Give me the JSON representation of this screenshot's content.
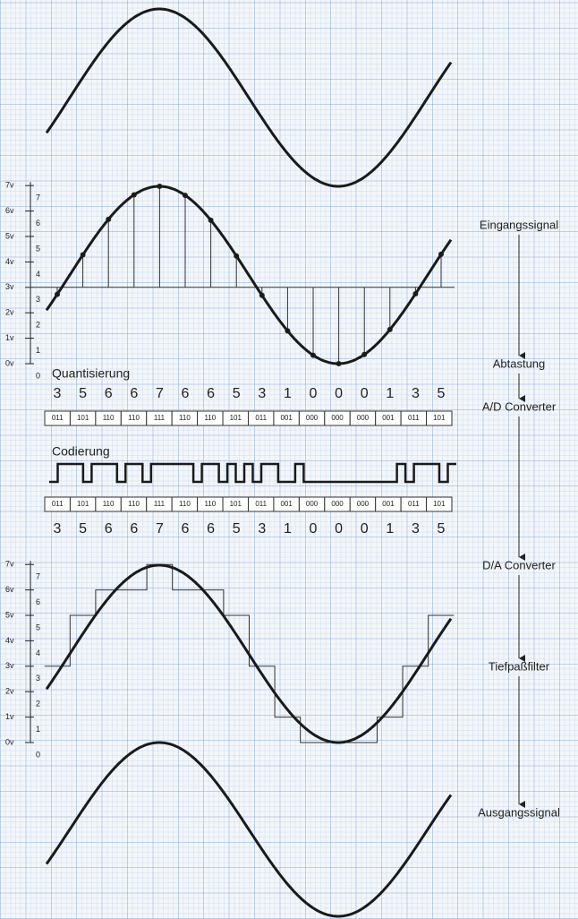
{
  "flow": [
    "Eingangssignal",
    "Abtastung",
    "A/D Converter",
    "D/A Converter",
    "Tiefpaßfilter",
    "Ausgangssignal"
  ],
  "axis": {
    "outer": [
      "7v",
      "6v",
      "5v",
      "4v",
      "3v",
      "2v",
      "1v",
      "0v"
    ],
    "inner": [
      "7",
      "6",
      "5",
      "4",
      "3",
      "2",
      "1",
      "0"
    ]
  },
  "quantization": {
    "title": "Quantisierung",
    "values": [
      3,
      5,
      6,
      6,
      7,
      6,
      6,
      5,
      3,
      1,
      0,
      0,
      0,
      1,
      3,
      5
    ]
  },
  "coding": {
    "title": "Codierung",
    "codes": [
      "011",
      "101",
      "110",
      "110",
      "111",
      "110",
      "110",
      "101",
      "011",
      "001",
      "000",
      "000",
      "000",
      "001",
      "011",
      "101"
    ]
  }
}
